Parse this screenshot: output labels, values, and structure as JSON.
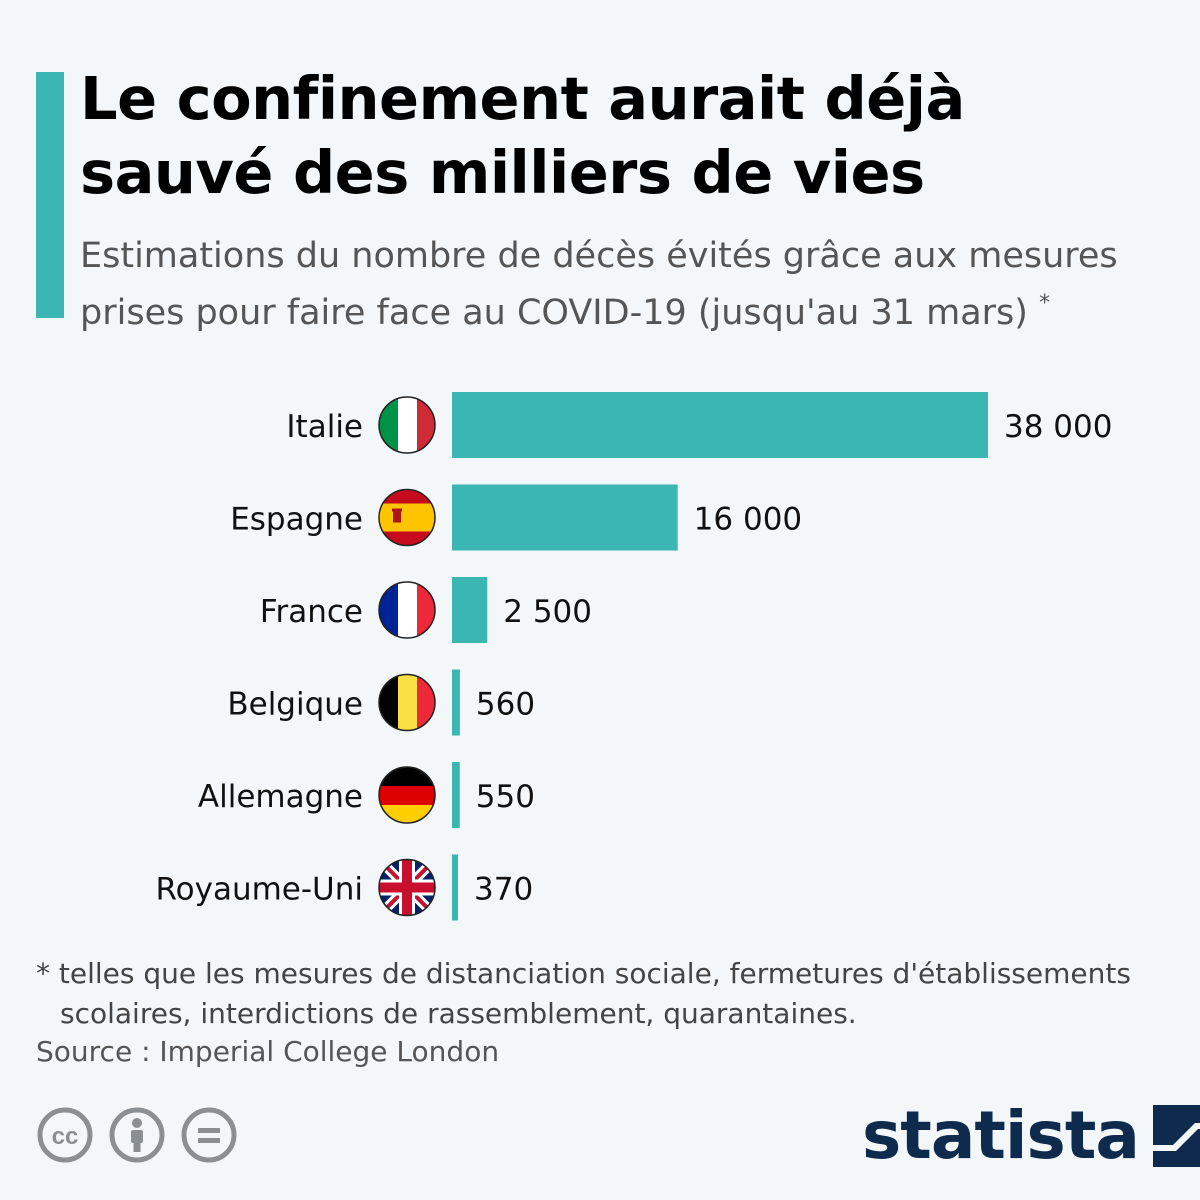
{
  "header": {
    "title_line1": "Le confinement aurait déjà",
    "title_line2": "sauvé des milliers de vies",
    "subtitle_line1": "Estimations du nombre de décès évités grâce aux mesures",
    "subtitle_line2": "prises pour faire face au COVID-19 (jusqu'au 31 mars)",
    "subtitle_asterisk": "*"
  },
  "colors": {
    "accent": "#3bb6b2",
    "background": "#f3f7fa",
    "brand": "#0e2a4d"
  },
  "chart_data": {
    "type": "bar",
    "orientation": "horizontal",
    "title": "Le confinement aurait déjà sauvé des milliers de vies",
    "categories": [
      "Italie",
      "Espagne",
      "France",
      "Belgique",
      "Allemagne",
      "Royaume-Uni"
    ],
    "values": [
      38000,
      16000,
      2500,
      560,
      550,
      370
    ],
    "data_labels": [
      "38 000",
      "16 000",
      "2 500",
      "560",
      "550",
      "370"
    ],
    "flags": [
      "italy-flag-icon",
      "spain-flag-icon",
      "france-flag-icon",
      "belgium-flag-icon",
      "germany-flag-icon",
      "uk-flag-icon"
    ],
    "xlim": [
      0,
      38000
    ],
    "grid": false,
    "bar_color": "#3bb6b2"
  },
  "footer": {
    "footnote_line1": "* telles que les mesures de distanciation sociale, fermetures d'établissements",
    "footnote_line2": "scolaires, interdictions de rassemblement, quarantaines.",
    "source": "Source : Imperial College London",
    "license_icons": [
      "cc-icon",
      "attribution-icon",
      "no-derivatives-icon"
    ],
    "brand_name": "statista",
    "brand_icon": "statista-logo-icon"
  }
}
